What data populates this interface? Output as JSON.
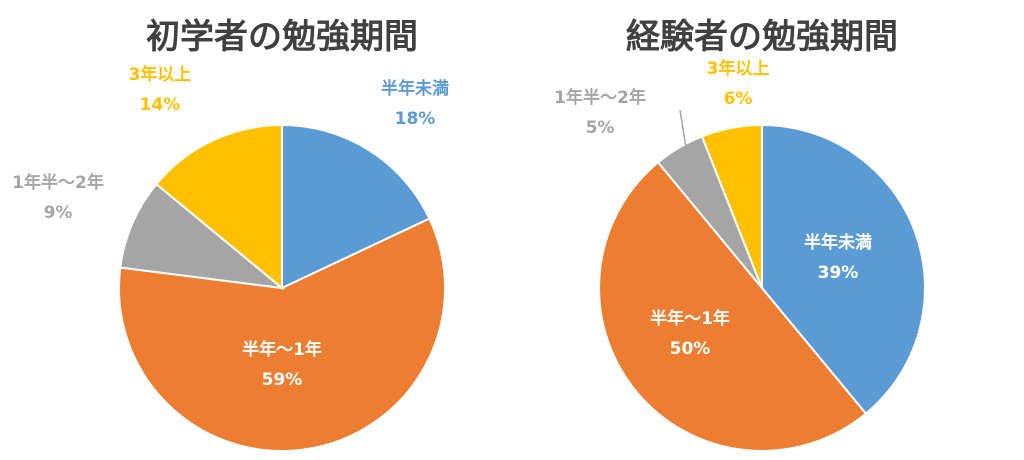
{
  "chart_data": [
    {
      "type": "pie",
      "title": "初学者の勉強期間",
      "slices": [
        {
          "label": "半年未満",
          "value": 18,
          "value_text": "18%",
          "color": "#5B9BD5",
          "label_color": "#5B9BD5",
          "label_inside": false
        },
        {
          "label": "半年～1年",
          "value": 59,
          "value_text": "59%",
          "color": "#ED7D31",
          "label_color": "#FFFFFF",
          "label_inside": true
        },
        {
          "label": "1年半～2年",
          "value": 9,
          "value_text": "9%",
          "color": "#A5A5A5",
          "label_color": "#A5A5A5",
          "label_inside": false
        },
        {
          "label": "3年以上",
          "value": 14,
          "value_text": "14%",
          "color": "#FFC000",
          "label_color": "#FFC000",
          "label_inside": false
        }
      ]
    },
    {
      "type": "pie",
      "title": "経験者の勉強期間",
      "slices": [
        {
          "label": "半年未満",
          "value": 39,
          "value_text": "39%",
          "color": "#5B9BD5",
          "label_color": "#FFFFFF",
          "label_inside": true
        },
        {
          "label": "半年～1年",
          "value": 50,
          "value_text": "50%",
          "color": "#ED7D31",
          "label_color": "#FFFFFF",
          "label_inside": true
        },
        {
          "label": "1年半～2年",
          "value": 5,
          "value_text": "5%",
          "color": "#A5A5A5",
          "label_color": "#A5A5A5",
          "label_inside": false
        },
        {
          "label": "3年以上",
          "value": 6,
          "value_text": "6%",
          "color": "#FFC000",
          "label_color": "#FFC000",
          "label_inside": false
        }
      ]
    }
  ]
}
